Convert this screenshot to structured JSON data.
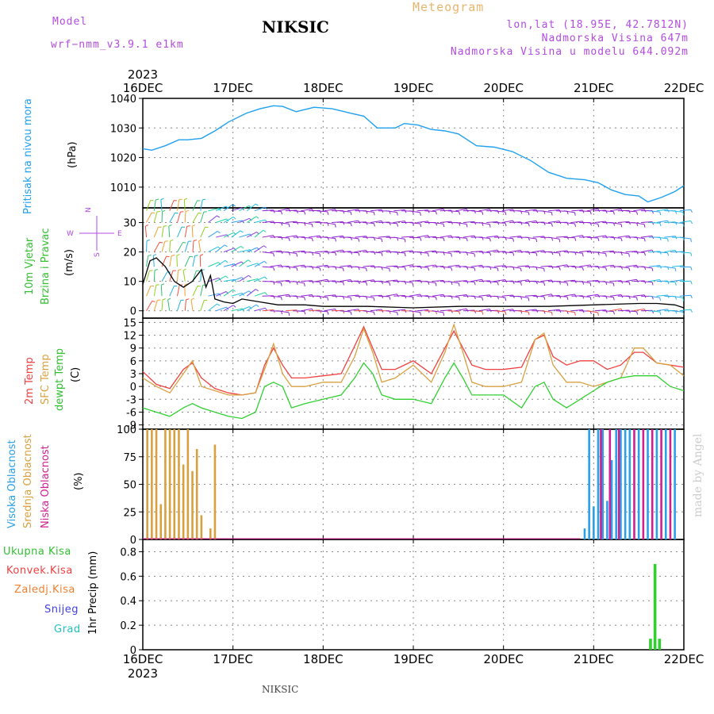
{
  "header": {
    "model_label": "Model",
    "model_name": "wrf−nmm_v3.9.1  e1km",
    "title": "NIKSIC",
    "meteogram": "Meteogram",
    "lonlat": "lon,lat (18.95E, 42.7812N)",
    "altitude": "Nadmorska Visina 647m",
    "model_altitude": "Nadmorska Visina u modelu 644.092m"
  },
  "colors": {
    "pressure": "#1fa0f0",
    "wind_speed": "#000000",
    "temp2m": "#f04040",
    "sfc_temp": "#d9a040",
    "dewpoint": "#30d030",
    "cloud_high": "#2aa0e8",
    "cloud_mid": "#d9a040",
    "cloud_low": "#d02090",
    "precip_total": "#30d030",
    "grid": "#888888"
  },
  "time_axis": {
    "year": "2023",
    "ticks": [
      "16DEC",
      "17DEC",
      "18DEC",
      "19DEC",
      "20DEC",
      "21DEC",
      "22DEC"
    ]
  },
  "panel_labels": {
    "pressure": [
      "Pritisak na nivou mora",
      "(hPa)"
    ],
    "wind": [
      "10m Vjetar",
      "Brzina i Pravac",
      "(m/s)"
    ],
    "wind_compass": {
      "n": "N",
      "w": "W",
      "e": "E",
      "s": "S"
    },
    "temp": [
      "2m Temp",
      "SFC Temp",
      "dewpt Temp",
      "(C)"
    ],
    "cloud": [
      "Visoka Oblacnost",
      "Srednja Oblacnost",
      "Niska Oblacnost",
      "(%)"
    ],
    "precip_axis": "1hr Precip (mm)",
    "precip_legend": [
      "Ukupna Kisa",
      "Konvek.Kisa",
      "Zaledj.Kisa",
      "Snijeg",
      "Grad"
    ]
  },
  "footer": {
    "station": "NIKSIC",
    "credit": "made by Angel"
  },
  "chart_data": [
    {
      "type": "line",
      "name": "pressure",
      "ylabel": "(hPa)",
      "ylim": [
        1003,
        1040
      ],
      "yticks": [
        1010,
        1020,
        1030,
        1040
      ],
      "grid": true,
      "x": [
        0,
        0.1,
        0.25,
        0.4,
        0.5,
        0.65,
        0.8,
        0.95,
        1.15,
        1.3,
        1.45,
        1.55,
        1.7,
        1.9,
        2.1,
        2.3,
        2.45,
        2.6,
        2.8,
        2.9,
        3.05,
        3.2,
        3.35,
        3.5,
        3.7,
        3.9,
        4.1,
        4.3,
        4.5,
        4.7,
        4.9,
        5.05,
        5.2,
        5.35,
        5.5,
        5.6,
        5.75,
        5.9,
        6.0
      ],
      "values": [
        1023,
        1022.5,
        1024,
        1026,
        1026,
        1026.5,
        1029,
        1032,
        1035,
        1036.5,
        1037.5,
        1037.3,
        1035.5,
        1037,
        1036.5,
        1035,
        1034,
        1030,
        1030,
        1031.5,
        1031,
        1029.5,
        1029,
        1028,
        1024,
        1023.5,
        1022,
        1019,
        1015,
        1013,
        1012.5,
        1011.5,
        1009,
        1007.5,
        1007,
        1005,
        1006.5,
        1008.5,
        1010.5
      ]
    },
    {
      "type": "line",
      "name": "wind-speed",
      "ylabel": "(m/s)",
      "ylim": [
        -2.5,
        35
      ],
      "yticks": [
        0,
        10,
        20,
        30
      ],
      "grid": true,
      "x": [
        0,
        0.08,
        0.15,
        0.25,
        0.35,
        0.45,
        0.55,
        0.65,
        0.7,
        0.75,
        0.8,
        0.9,
        1.0,
        1.1,
        1.3,
        1.5,
        1.8,
        2.0,
        2.5,
        3.0,
        3.5,
        4.0,
        4.5,
        5.0,
        5.5,
        5.7,
        5.9,
        6.0
      ],
      "values": [
        9,
        17,
        18,
        15,
        10,
        8,
        10,
        14,
        8,
        12,
        4,
        3,
        2.5,
        4,
        3,
        2,
        2,
        1.5,
        1.5,
        1,
        1.5,
        1.5,
        1.5,
        2,
        2.5,
        2.5,
        2,
        1
      ],
      "barbs_note": "colored wind barbs in each row"
    },
    {
      "type": "line",
      "name": "temperature",
      "ylabel": "(C)",
      "ylim": [
        -10,
        16
      ],
      "yticks": [
        -9,
        -6,
        -3,
        0,
        3,
        6,
        9,
        12,
        15
      ],
      "grid": true,
      "x": [
        0,
        0.15,
        0.3,
        0.45,
        0.55,
        0.65,
        0.8,
        0.95,
        1.1,
        1.25,
        1.35,
        1.45,
        1.55,
        1.65,
        1.8,
        2.0,
        2.2,
        2.35,
        2.45,
        2.55,
        2.65,
        2.8,
        3.0,
        3.2,
        3.35,
        3.45,
        3.55,
        3.65,
        3.8,
        4.0,
        4.2,
        4.35,
        4.45,
        4.55,
        4.7,
        4.85,
        5.0,
        5.15,
        5.3,
        5.45,
        5.55,
        5.7,
        5.85,
        6.0
      ],
      "series": [
        {
          "name": "2m Temp",
          "values": [
            3.5,
            0.5,
            -0.5,
            4,
            5.5,
            2,
            -0.5,
            -1.5,
            -2,
            -1.5,
            5,
            9,
            5,
            2,
            2,
            2.5,
            3,
            9.5,
            14,
            9,
            4,
            4,
            6,
            3,
            9,
            13,
            9,
            5,
            4,
            4,
            4.5,
            11,
            12,
            7,
            5,
            6,
            6,
            4,
            5,
            8,
            8,
            5.5,
            5,
            4.5
          ]
        },
        {
          "name": "SFC Temp",
          "values": [
            2,
            0,
            -1.5,
            3,
            6,
            0,
            -1,
            -2,
            -2,
            -1.5,
            4,
            10,
            3,
            0,
            0,
            1,
            1,
            7,
            13.5,
            8,
            1,
            2,
            5,
            1,
            8,
            14.5,
            8,
            1,
            0,
            0,
            1,
            11,
            12.5,
            5,
            1,
            1,
            0,
            1,
            2,
            9,
            9,
            5.5,
            5,
            2.5
          ]
        },
        {
          "name": "dewpt Temp",
          "values": [
            -5,
            -6,
            -7,
            -5,
            -4,
            -5,
            -6,
            -7,
            -7.5,
            -6,
            0,
            1,
            0,
            -5,
            -4,
            -3,
            -2,
            2,
            5.5,
            3,
            -2,
            -3,
            -3,
            -4,
            2,
            5.5,
            2,
            -2,
            -2,
            -2,
            -5,
            0,
            1,
            -3,
            -5,
            -3,
            -1,
            1,
            2,
            2.5,
            2.5,
            2.5,
            0,
            -1
          ]
        }
      ]
    },
    {
      "type": "bar",
      "name": "cloud-cover",
      "ylabel": "(%)",
      "ylim": [
        0,
        100
      ],
      "yticks": [
        0,
        25,
        50,
        75,
        100
      ],
      "grid": true,
      "series": [
        {
          "name": "Srednja Oblacnost",
          "x": [
            0.05,
            0.1,
            0.15,
            0.2,
            0.25,
            0.3,
            0.35,
            0.4,
            0.45,
            0.5,
            0.55,
            0.6,
            0.65,
            0.75,
            0.8
          ],
          "values": [
            100,
            100,
            100,
            32,
            100,
            100,
            100,
            100,
            68,
            100,
            62,
            82,
            22,
            10,
            86
          ]
        },
        {
          "name": "Visoka Oblacnost",
          "x": [
            4.9,
            4.95,
            5.0,
            5.05,
            5.1,
            5.15,
            5.2,
            5.25,
            5.3,
            5.35,
            5.4,
            5.5,
            5.6,
            5.7,
            5.8,
            5.9
          ],
          "values": [
            10,
            100,
            30,
            100,
            100,
            35,
            72,
            100,
            100,
            100,
            100,
            100,
            100,
            100,
            100,
            100
          ]
        },
        {
          "name": "Niska Oblacnost",
          "x": [
            5.08,
            5.18,
            5.28,
            5.45,
            5.55,
            5.65,
            5.75,
            5.85
          ],
          "values": [
            100,
            100,
            100,
            100,
            100,
            100,
            100,
            100
          ]
        }
      ]
    },
    {
      "type": "bar",
      "name": "precipitation",
      "ylabel": "1hr Precip (mm)",
      "ylim": [
        0,
        0.9
      ],
      "yticks": [
        0,
        0.2,
        0.4,
        0.6,
        0.8
      ],
      "grid": true,
      "series": [
        {
          "name": "Ukupna Kisa",
          "x": [
            5.63,
            5.68,
            5.73
          ],
          "values": [
            0.09,
            0.7,
            0.09
          ]
        }
      ]
    }
  ]
}
